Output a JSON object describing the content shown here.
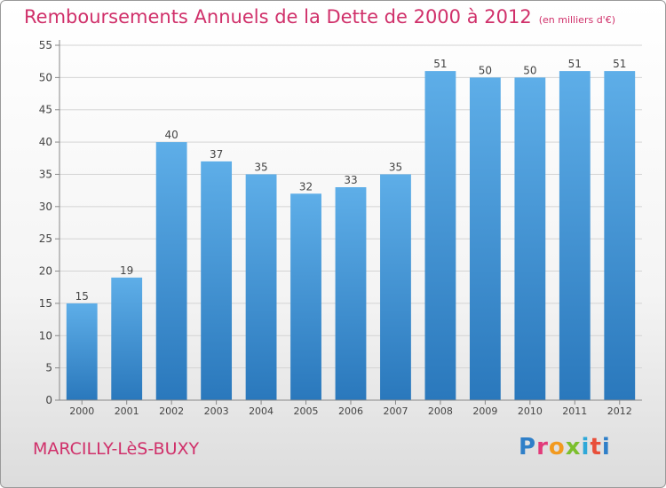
{
  "header": {
    "title": "Remboursements Annuels de la Dette de 2000 à 2012",
    "subtitle": "(en milliers d'€)"
  },
  "footer": {
    "commune": "MARCILLY-LèS-BUXY",
    "logo_letters": [
      "P",
      "r",
      "o",
      "x",
      "i",
      "t",
      "i"
    ]
  },
  "chart_data": {
    "type": "bar",
    "title": "Remboursements Annuels de la Dette de 2000 à 2012",
    "subtitle": "(en milliers d'€)",
    "categories": [
      "2000",
      "2001",
      "2002",
      "2003",
      "2004",
      "2005",
      "2006",
      "2007",
      "2008",
      "2009",
      "2010",
      "2011",
      "2012"
    ],
    "values": [
      15,
      19,
      40,
      37,
      35,
      32,
      33,
      35,
      51,
      50,
      50,
      51,
      51
    ],
    "ylim": [
      0,
      55
    ],
    "yticks": [
      0,
      5,
      10,
      15,
      20,
      25,
      30,
      35,
      40,
      45,
      50,
      55
    ],
    "grid": true,
    "legend": "none",
    "bar_color": "#3d94d8",
    "label_color": "#444444"
  }
}
